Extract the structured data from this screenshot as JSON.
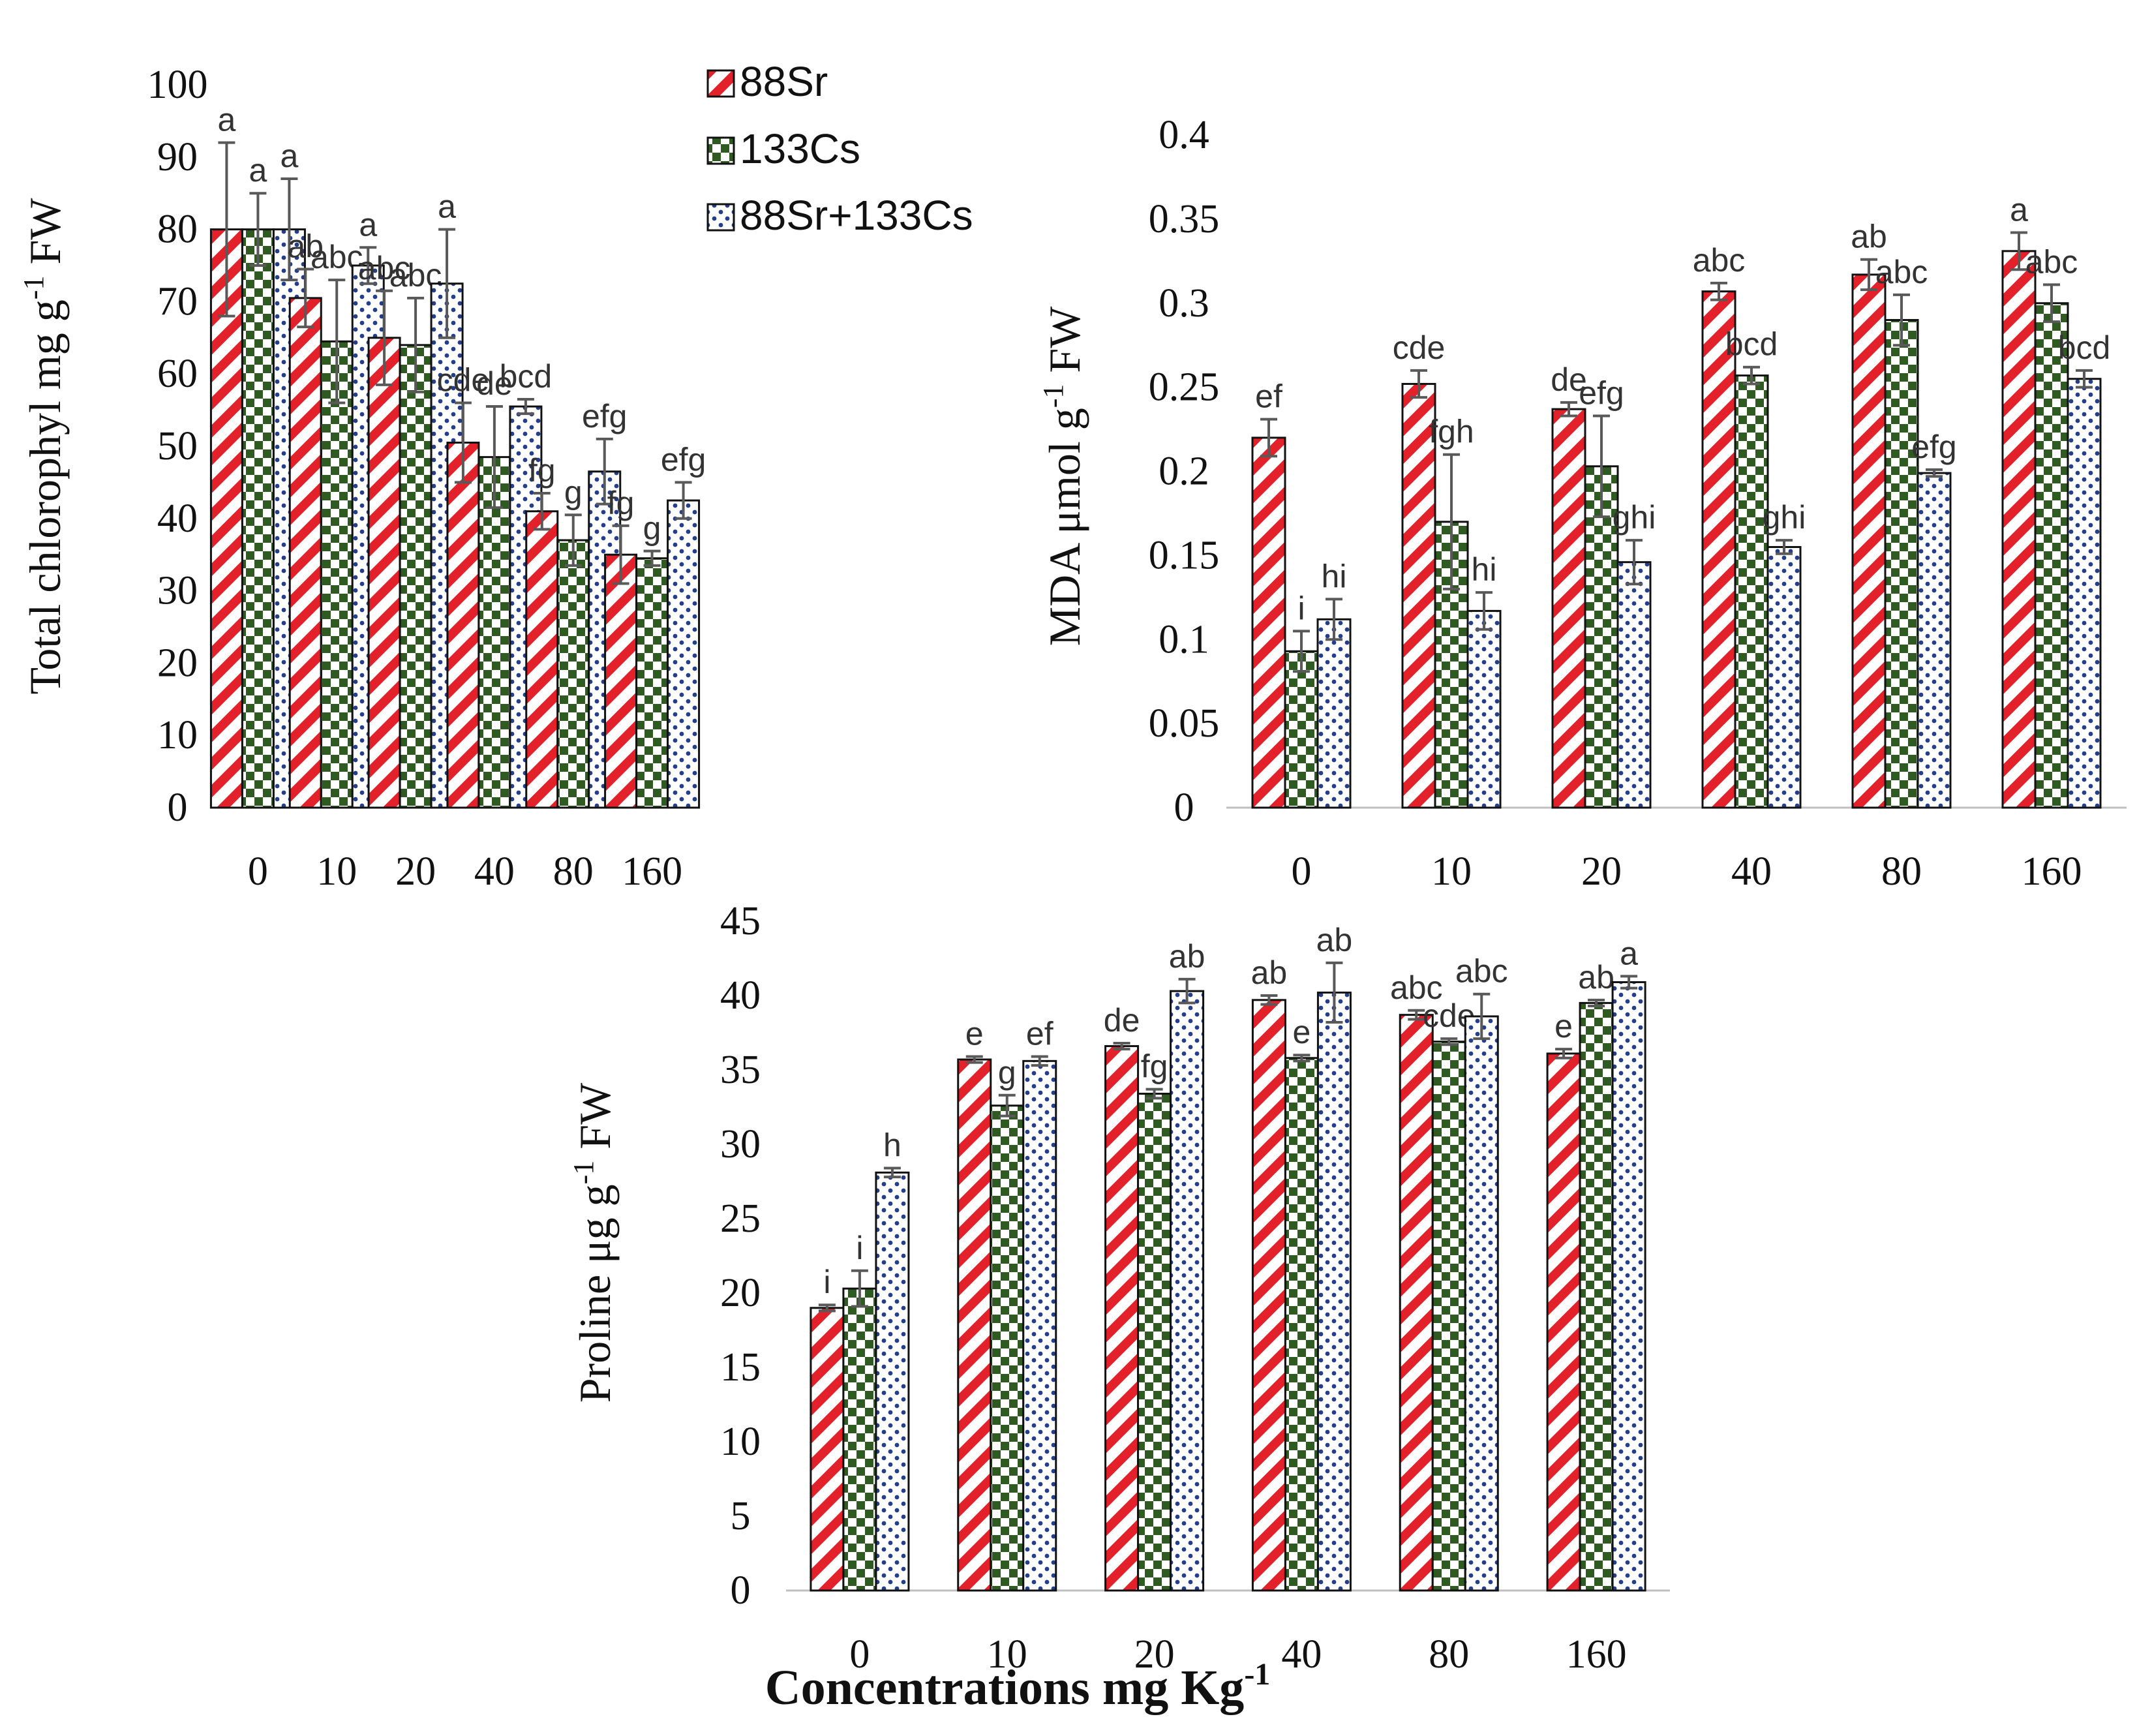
{
  "colors": {
    "s88": "#e2212b",
    "s133": "#2f5a22",
    "combo": "#253e8a",
    "axis": "#bfbfbf",
    "error_bar": "#595959"
  },
  "legend": [
    "88Sr",
    "133Cs",
    "88Sr+133Cs"
  ],
  "x_title": {
    "main": "Concentrations mg Kg",
    "sup": "-1"
  },
  "chart_data": [
    {
      "type": "bar",
      "ylabel": {
        "pre": "Total chlorophyl mg g",
        "sup": "-1",
        "post": " FW"
      },
      "categories": [
        "0",
        "10",
        "20",
        "40",
        "80",
        "160"
      ],
      "ylim": [
        0,
        100
      ],
      "yticks": [
        "0",
        "10",
        "20",
        "30",
        "40",
        "50",
        "60",
        "70",
        "80",
        "90",
        "100"
      ],
      "series": [
        {
          "name": "88Sr",
          "values": [
            80,
            70.5,
            65,
            50.5,
            41,
            35
          ],
          "errors": [
            12,
            4,
            6.5,
            5.5,
            2.5,
            4
          ],
          "letters": [
            "a",
            "ab",
            "abc",
            "cde",
            "fg",
            "fg"
          ]
        },
        {
          "name": "133Cs",
          "values": [
            80,
            64.5,
            64,
            48.5,
            37,
            34.5
          ],
          "errors": [
            5,
            8.5,
            6.5,
            7,
            3.5,
            1
          ],
          "letters": [
            "a",
            "abc",
            "abc",
            "de",
            "g",
            "g"
          ]
        },
        {
          "name": "88Sr+133Cs",
          "values": [
            80,
            75,
            72.5,
            55.5,
            46.5,
            42.5
          ],
          "errors": [
            7,
            2.5,
            7.5,
            1,
            4.5,
            2.5
          ],
          "letters": [
            "a",
            "a",
            "a",
            "bcd",
            "efg",
            "efg"
          ]
        }
      ]
    },
    {
      "type": "bar",
      "ylabel": {
        "pre": "MDA μmol g",
        "sup": "-1",
        "post": " FW"
      },
      "categories": [
        "0",
        "10",
        "20",
        "40",
        "80",
        "160"
      ],
      "ylim": [
        0,
        0.4
      ],
      "yticks": [
        "0",
        "0.05",
        "0.1",
        "0.15",
        "0.2",
        "0.25",
        "0.3",
        "0.35",
        "0.4"
      ],
      "series": [
        {
          "name": "88Sr",
          "values": [
            0.22,
            0.252,
            0.237,
            0.307,
            0.317,
            0.331
          ],
          "errors": [
            0.011,
            0.008,
            0.004,
            0.005,
            0.009,
            0.011
          ],
          "letters": [
            "ef",
            "cde",
            "de",
            "abc",
            "ab",
            "a"
          ]
        },
        {
          "name": "133Cs",
          "values": [
            0.093,
            0.17,
            0.203,
            0.257,
            0.29,
            0.3
          ],
          "errors": [
            0.012,
            0.04,
            0.03,
            0.005,
            0.015,
            0.011
          ],
          "letters": [
            "i",
            "fgh",
            "efg",
            "bcd",
            "abc",
            "abc"
          ]
        },
        {
          "name": "88Sr+133Cs",
          "values": [
            0.112,
            0.117,
            0.146,
            0.155,
            0.199,
            0.255
          ],
          "errors": [
            0.012,
            0.011,
            0.013,
            0.004,
            0.002,
            0.005
          ],
          "letters": [
            "hi",
            "hi",
            "ghi",
            "ghi",
            "efg",
            "bcd"
          ]
        }
      ]
    },
    {
      "type": "bar",
      "ylabel": {
        "pre": "Proline μg g",
        "sup": "-1",
        "post": " FW"
      },
      "categories": [
        "0",
        "10",
        "20",
        "40",
        "80",
        "160"
      ],
      "ylim": [
        0,
        45
      ],
      "yticks": [
        "0",
        "5",
        "10",
        "15",
        "20",
        "25",
        "30",
        "35",
        "40",
        "45"
      ],
      "series": [
        {
          "name": "88Sr",
          "values": [
            19,
            35.7,
            36.6,
            39.7,
            38.7,
            36.1
          ],
          "errors": [
            0.2,
            0.2,
            0.2,
            0.3,
            0.3,
            0.3
          ],
          "letters": [
            "i",
            "e",
            "de",
            "ab",
            "abc",
            "e"
          ]
        },
        {
          "name": "133Cs",
          "values": [
            20.3,
            32.6,
            33.4,
            35.8,
            36.9,
            39.5
          ],
          "errors": [
            1.2,
            0.7,
            0.3,
            0.2,
            0.2,
            0.2
          ],
          "letters": [
            "i",
            "g",
            "fg",
            "e",
            "cde",
            "ab"
          ]
        },
        {
          "name": "88Sr+133Cs",
          "values": [
            28.1,
            35.6,
            40.3,
            40.2,
            38.6,
            40.9
          ],
          "errors": [
            0.3,
            0.3,
            0.8,
            2,
            1.5,
            0.4
          ],
          "letters": [
            "h",
            "ef",
            "ab",
            "ab",
            "abc",
            "a"
          ]
        }
      ]
    }
  ]
}
